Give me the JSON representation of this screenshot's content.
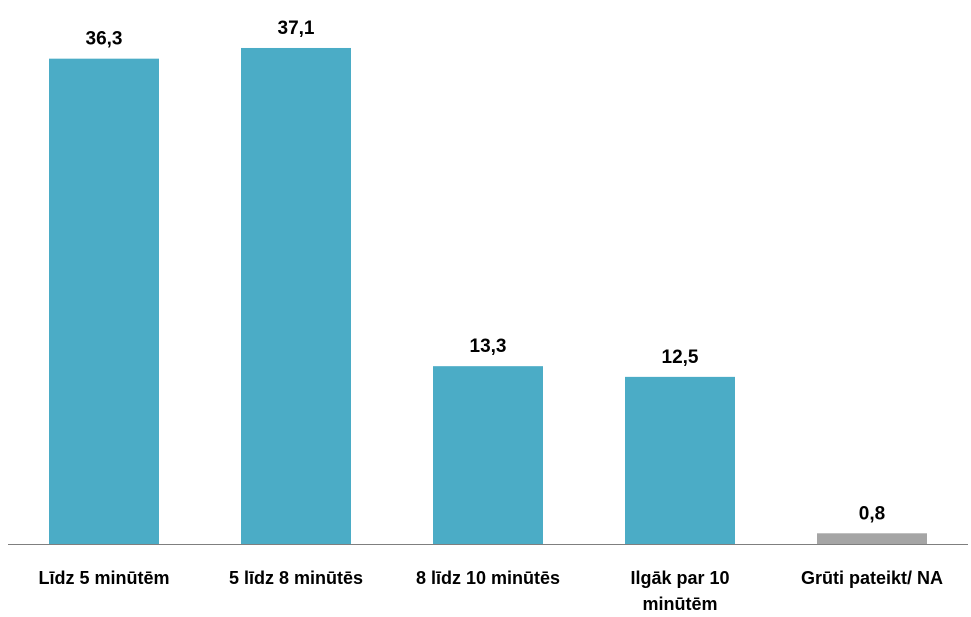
{
  "chart_data": {
    "type": "bar",
    "categories": [
      [
        "Līdz 5 minūtēm"
      ],
      [
        "5 līdz 8 minūtēs"
      ],
      [
        "8 līdz 10 minūtēs"
      ],
      [
        "Ilgāk par 10",
        "minūtēm"
      ],
      [
        "Grūti pateikt/ NA"
      ]
    ],
    "values": [
      36.3,
      37.1,
      13.3,
      12.5,
      0.8
    ],
    "value_labels": [
      "36,3",
      "37,1",
      "13,3",
      "12,5",
      "0,8"
    ],
    "bar_colors": [
      "#4bacc6",
      "#4bacc6",
      "#4bacc6",
      "#4bacc6",
      "#a5a5a5"
    ],
    "title": "",
    "xlabel": "",
    "ylabel": "",
    "ylim": [
      0,
      40
    ],
    "grid": false,
    "legend": "none"
  }
}
